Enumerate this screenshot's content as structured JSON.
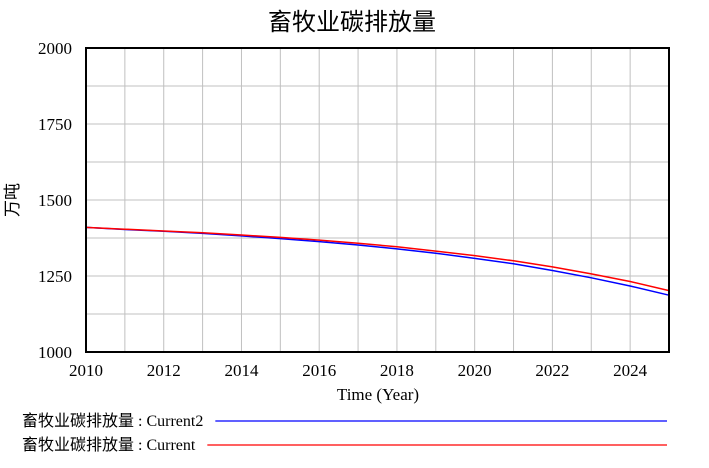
{
  "chart_data": {
    "type": "line",
    "title": "畜牧业碳排放量",
    "xlabel": "Time (Year)",
    "ylabel": "万吨",
    "xlim": [
      2010,
      2025
    ],
    "ylim": [
      1000,
      2000
    ],
    "x_ticks": [
      2010,
      2012,
      2014,
      2016,
      2018,
      2020,
      2022,
      2024
    ],
    "x_tick_labels": [
      "2010",
      "2012",
      "2014",
      "2016",
      "2018",
      "2020",
      "2022",
      "2024"
    ],
    "y_ticks": [
      1000,
      1250,
      1500,
      1750,
      2000
    ],
    "y_tick_labels": [
      "1000",
      "1250",
      "1500",
      "1750",
      "2000"
    ],
    "grid": true,
    "legend_position": "bottom",
    "x": [
      2010,
      2011,
      2012,
      2013,
      2014,
      2015,
      2016,
      2017,
      2018,
      2019,
      2020,
      2021,
      2022,
      2023,
      2024,
      2025
    ],
    "series": [
      {
        "name": "畜牧业碳排放量 : Current2",
        "color": "#0000ff",
        "values": [
          1410,
          1403,
          1397,
          1390,
          1382,
          1373,
          1363,
          1352,
          1339,
          1325,
          1308,
          1290,
          1268,
          1244,
          1217,
          1187
        ]
      },
      {
        "name": "畜牧业碳排放量 : Current",
        "color": "#ff0000",
        "values": [
          1410,
          1404,
          1398,
          1392,
          1385,
          1377,
          1368,
          1358,
          1346,
          1332,
          1317,
          1300,
          1280,
          1257,
          1232,
          1202
        ]
      }
    ]
  }
}
